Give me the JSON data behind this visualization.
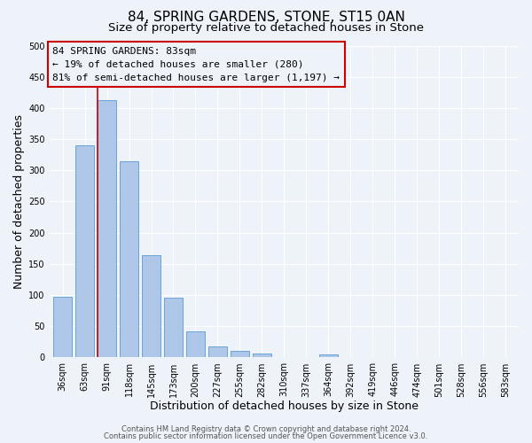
{
  "title": "84, SPRING GARDENS, STONE, ST15 0AN",
  "subtitle": "Size of property relative to detached houses in Stone",
  "xlabel": "Distribution of detached houses by size in Stone",
  "ylabel": "Number of detached properties",
  "bin_labels": [
    "36sqm",
    "63sqm",
    "91sqm",
    "118sqm",
    "145sqm",
    "173sqm",
    "200sqm",
    "227sqm",
    "255sqm",
    "282sqm",
    "310sqm",
    "337sqm",
    "364sqm",
    "392sqm",
    "419sqm",
    "446sqm",
    "474sqm",
    "501sqm",
    "528sqm",
    "556sqm",
    "583sqm"
  ],
  "bar_heights": [
    97,
    340,
    412,
    315,
    164,
    96,
    42,
    18,
    10,
    6,
    0,
    0,
    5,
    0,
    0,
    0,
    0,
    0,
    0,
    0,
    0
  ],
  "bar_color": "#aec6e8",
  "bar_edge_color": "#5b9bd5",
  "property_line_bin": 2,
  "annotation_title": "84 SPRING GARDENS: 83sqm",
  "annotation_line1": "← 19% of detached houses are smaller (280)",
  "annotation_line2": "81% of semi-detached houses are larger (1,197) →",
  "annotation_box_color": "#cc0000",
  "ylim": [
    0,
    500
  ],
  "yticks": [
    0,
    50,
    100,
    150,
    200,
    250,
    300,
    350,
    400,
    450,
    500
  ],
  "footer1": "Contains HM Land Registry data © Crown copyright and database right 2024.",
  "footer2": "Contains public sector information licensed under the Open Government Licence v3.0.",
  "bg_color": "#eef2f9",
  "grid_color": "#ffffff",
  "title_fontsize": 11,
  "subtitle_fontsize": 9.5,
  "axis_label_fontsize": 9,
  "tick_fontsize": 7,
  "annotation_fontsize": 8,
  "footer_fontsize": 6
}
